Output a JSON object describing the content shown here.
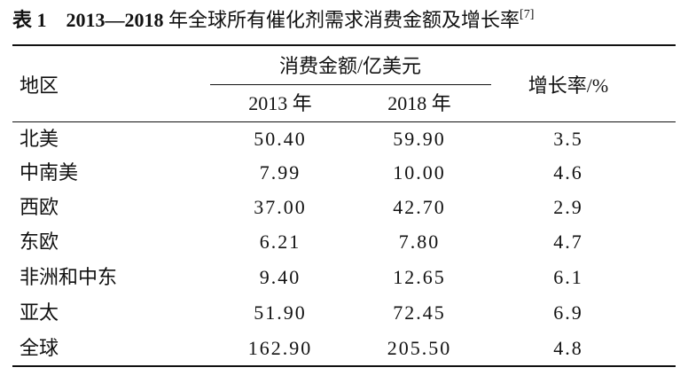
{
  "caption": {
    "label": "表 1",
    "title_years": "2013—2018",
    "title_text": " 年全球所有催化剂需求消费金额及增长率",
    "reference": "[7]"
  },
  "table": {
    "header": {
      "region": "地区",
      "group": "消费金额/亿美元",
      "years": [
        "2013 年",
        "2018 年"
      ],
      "growth": "增长率/%"
    },
    "rows": [
      [
        "北美",
        "50.40",
        "59.90",
        "3.5"
      ],
      [
        "中南美",
        "7.99",
        "10.00",
        "4.6"
      ],
      [
        "西欧",
        "37.00",
        "42.70",
        "2.9"
      ],
      [
        "东欧",
        "6.21",
        "7.80",
        "4.7"
      ],
      [
        "非洲和中东",
        "9.40",
        "12.65",
        "6.1"
      ],
      [
        "亚太",
        "51.90",
        "72.45",
        "6.9"
      ],
      [
        "全球",
        "162.90",
        "205.50",
        "4.8"
      ]
    ]
  }
}
